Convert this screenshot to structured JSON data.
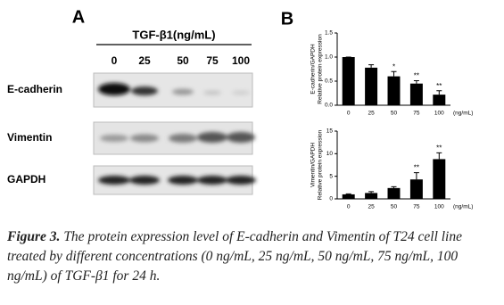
{
  "panel_a": {
    "label": "A",
    "treatment": "TGF-β1(ng/mL)",
    "concentrations": [
      "0",
      "25",
      "50",
      "75",
      "100"
    ],
    "rows": [
      "E-cadherin",
      "Vimentin",
      "GAPDH"
    ]
  },
  "panel_b": {
    "label": "B"
  },
  "chart_data": [
    {
      "type": "bar",
      "ylabel": [
        "E-cadherin/GAPDH",
        "Relative protein expression"
      ],
      "xunit": "(ng/mL)",
      "categories": [
        "0",
        "25",
        "50",
        "75",
        "100"
      ],
      "values": [
        1.0,
        0.78,
        0.6,
        0.45,
        0.22
      ],
      "errors": [
        0,
        0.06,
        0.1,
        0.06,
        0.08
      ],
      "annotations": [
        null,
        null,
        "*",
        "**",
        "**"
      ],
      "color": "#000000",
      "ylim": [
        0,
        1.5
      ],
      "yticks": [
        {
          "value": 0,
          "label": "0.0"
        },
        {
          "value": 0.5,
          "label": "0.5"
        },
        {
          "value": 1,
          "label": "1.0"
        },
        {
          "value": 1.5,
          "label": "1.5"
        }
      ]
    },
    {
      "type": "bar",
      "ylabel": [
        "Vimentin/GAPDH",
        "Relative protein expression"
      ],
      "xunit": "(ng/mL)",
      "categories": [
        "0",
        "25",
        "50",
        "75",
        "100"
      ],
      "values": [
        1.0,
        1.3,
        2.4,
        4.3,
        8.8
      ],
      "errors": [
        0.1,
        0.3,
        0.3,
        1.5,
        1.4
      ],
      "annotations": [
        null,
        null,
        null,
        "**",
        "**"
      ],
      "color": "#000000",
      "ylim": [
        0,
        15
      ],
      "yticks": [
        0,
        5,
        10,
        15
      ]
    }
  ],
  "caption": {
    "figure": "Figure 3.",
    "text": "The protein expression level of E-cadherin and Vimentin of T24 cell line treated by different concentrations (0 ng/mL, 25 ng/mL, 50 ng/mL, 75 ng/mL, 100 ng/mL) of TGF-β1 for 24 h."
  }
}
